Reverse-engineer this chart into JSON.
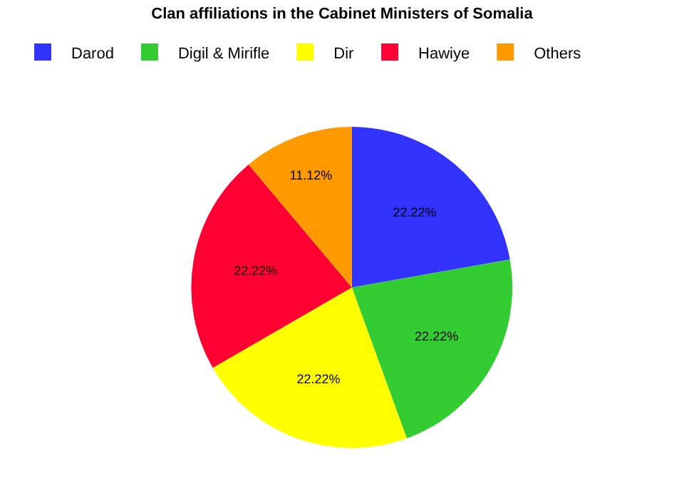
{
  "chart_data": {
    "type": "pie",
    "title": "Clan affiliations in the Cabinet Ministers of Somalia",
    "categories": [
      "Darod",
      "Digil & Mirifle",
      "Dir",
      "Hawiye",
      "Others"
    ],
    "values": [
      22.22,
      22.22,
      22.22,
      22.22,
      11.12
    ],
    "colors": [
      "#3333ff",
      "#33cc33",
      "#ffff00",
      "#ff0033",
      "#ff9900"
    ],
    "value_labels": [
      "22.22%",
      "22.22%",
      "22.22%",
      "22.22%",
      "11.12%"
    ],
    "legend": "top"
  }
}
